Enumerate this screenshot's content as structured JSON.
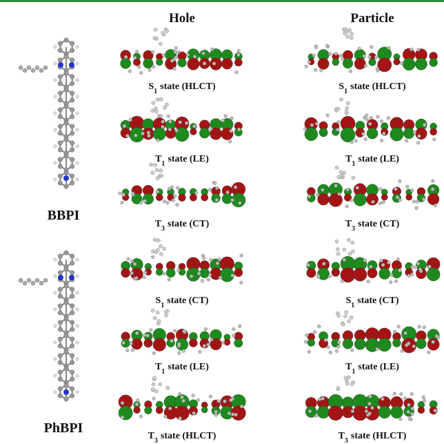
{
  "columns": {
    "hole": "Hole",
    "particle": "Particle"
  },
  "molecules": [
    {
      "label": "BBPI",
      "rows": [
        {
          "hole": {
            "state": "S",
            "sub": "1",
            "desc": "state  (HLCT)"
          },
          "particle": {
            "state": "S",
            "sub": "1",
            "desc": "state  (HLCT)"
          }
        },
        {
          "hole": {
            "state": "T",
            "sub": "1",
            "desc": "state  (LE)"
          },
          "particle": {
            "state": "T",
            "sub": "1",
            "desc": "state  (LE)"
          }
        },
        {
          "hole": {
            "state": "T",
            "sub": "3",
            "desc": "state  (CT)"
          },
          "particle": {
            "state": "T",
            "sub": "3",
            "desc": "state  (CT)"
          }
        }
      ]
    },
    {
      "label": "PhBPI",
      "rows": [
        {
          "hole": {
            "state": "S",
            "sub": "1",
            "desc": "state  (CT)"
          },
          "particle": {
            "state": "S",
            "sub": "1",
            "desc": "state  (CT)"
          }
        },
        {
          "hole": {
            "state": "T",
            "sub": "1",
            "desc": "state  (LE)"
          },
          "particle": {
            "state": "T",
            "sub": "1",
            "desc": "state  (LE)"
          }
        },
        {
          "hole": {
            "state": "T",
            "sub": "3",
            "desc": "state  (HLCT)"
          },
          "particle": {
            "state": "T",
            "sub": "3",
            "desc": "state  (HLCT)"
          }
        }
      ]
    }
  ]
}
